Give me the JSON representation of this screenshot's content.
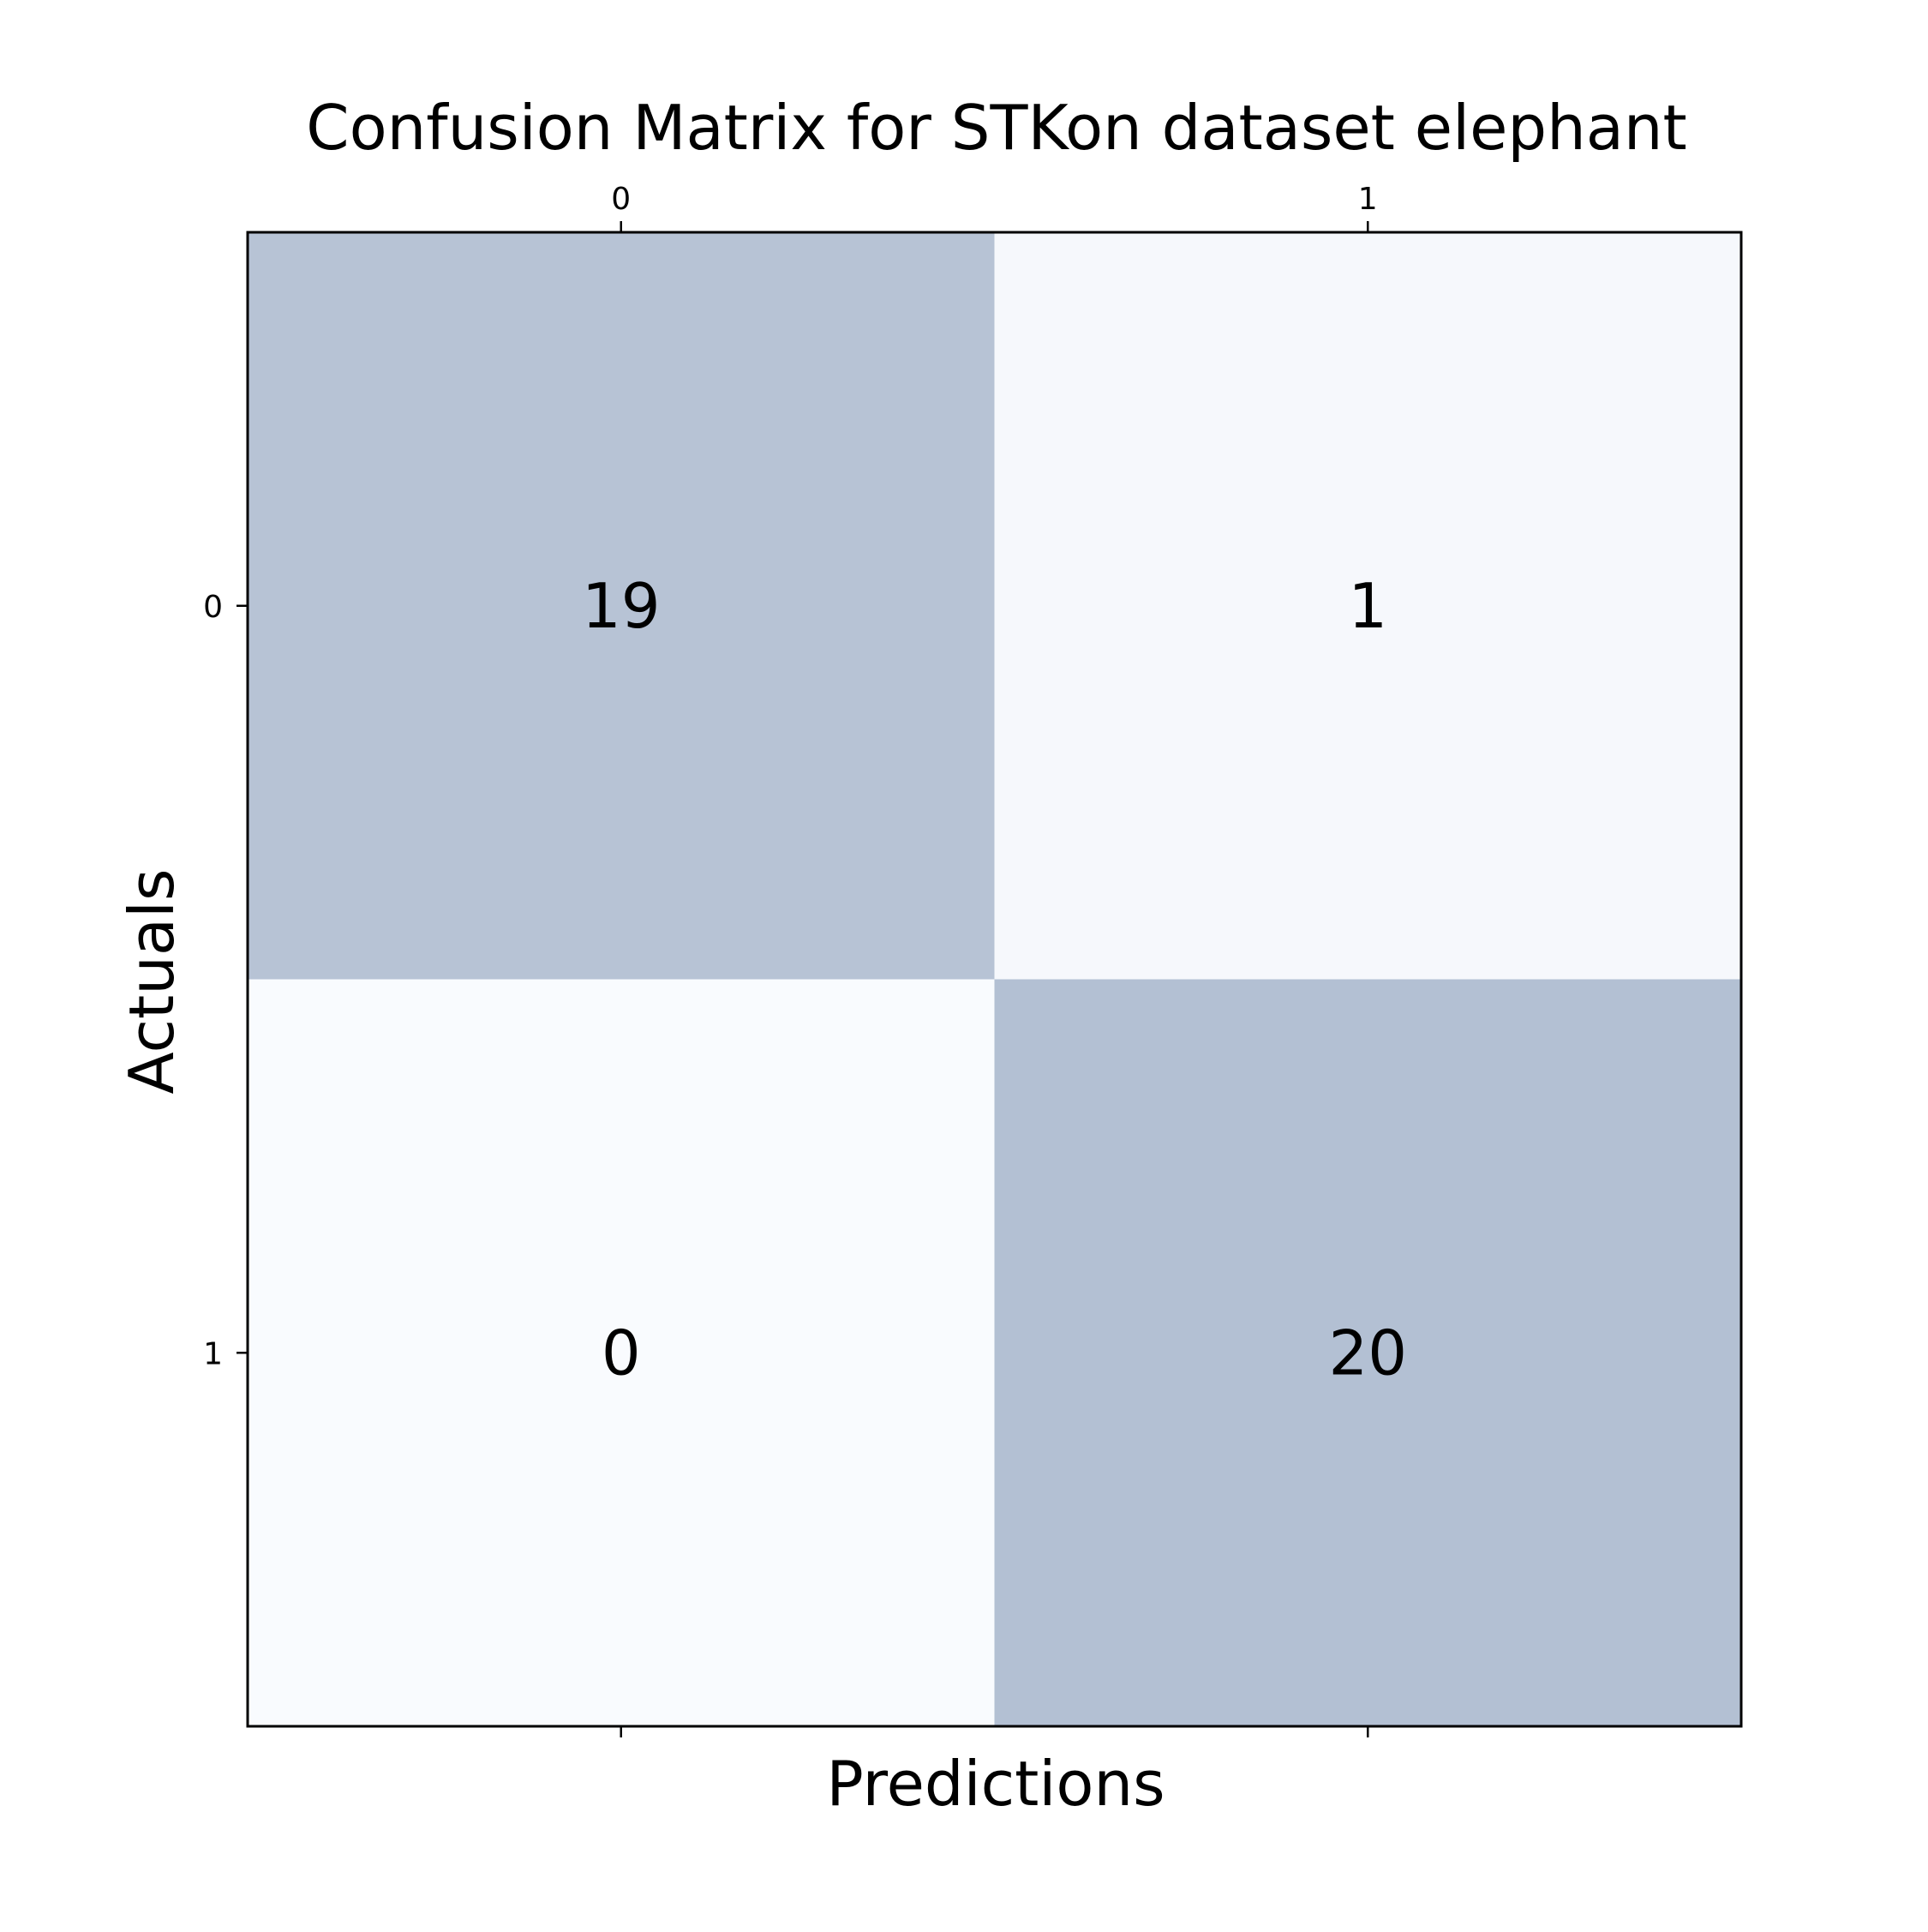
{
  "chart_data": {
    "type": "heatmap",
    "title": "Confusion Matrix for STKon dataset elephant",
    "xlabel": "Predictions",
    "ylabel": "Actuals",
    "x_categories": [
      "0",
      "1"
    ],
    "y_categories": [
      "0",
      "1"
    ],
    "values": [
      [
        19,
        1
      ],
      [
        0,
        20
      ]
    ],
    "value_range": [
      0,
      20
    ],
    "colormap": "Blues",
    "colors": {
      "high": "#b3c0d3",
      "low": "#f9fbfe",
      "text": "#000000",
      "frame": "#000000"
    },
    "grid": false,
    "x_ticks_position": "top"
  }
}
